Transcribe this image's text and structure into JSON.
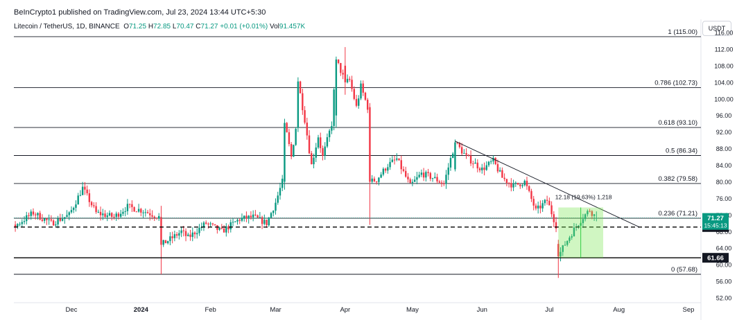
{
  "header": {
    "publisher": "BeInCrypto1 published on TradingView.com, Jul 23, 2024 13:44 UTC+5:30",
    "symbol": "Litecoin / TetherUS, 1D, BINANCE",
    "o_label": "O",
    "o": "71.25",
    "h_label": "H",
    "h": "72.85",
    "l_label": "L",
    "l": "70.47",
    "c_label": "C",
    "c": "71.27",
    "change": "+0.01 (+0.01%)",
    "vol_label": "Vol",
    "vol": "91.457K",
    "currency_button": "USDT"
  },
  "colors": {
    "up": "#089981",
    "down": "#f23645",
    "line": "#131722",
    "grid_text": "#131722",
    "rect_fill": "rgba(120,230,80,0.35)",
    "rect_line": "#2ecc40"
  },
  "chart_data": {
    "type": "candlestick",
    "title": "Litecoin / TetherUS, 1D, BINANCE",
    "ylim": [
      51,
      118
    ],
    "x_ticks": [
      "Dec",
      "2024",
      "Feb",
      "Mar",
      "Apr",
      "May",
      "Jun",
      "Jul",
      "Aug",
      "Sep"
    ],
    "y_ticks": [
      "52.00",
      "56.00",
      "60.00",
      "64.00",
      "68.00",
      "72.00",
      "76.00",
      "80.00",
      "84.00",
      "88.00",
      "92.00",
      "96.00",
      "100.00",
      "104.00",
      "108.00",
      "112.00",
      "116.00"
    ],
    "fib_levels": [
      {
        "label": "1 (115.00)",
        "value": 115.0
      },
      {
        "label": "0.786 (102.73)",
        "value": 102.73
      },
      {
        "label": "0.618 (93.10)",
        "value": 93.1
      },
      {
        "label": "0.5 (86.34)",
        "value": 86.34
      },
      {
        "label": "0.382 (79.58)",
        "value": 79.58
      },
      {
        "label": "0.236 (71.21)",
        "value": 71.21
      },
      {
        "label": "0 (57.68)",
        "value": 57.68
      }
    ],
    "horizontal_lines": [
      {
        "value": 69.08,
        "style": "dashed",
        "label": "69.08"
      },
      {
        "value": 61.66,
        "style": "solid",
        "label": "61.66"
      }
    ],
    "last_price": {
      "value": 71.27,
      "label": "71.27",
      "countdown": "15:45:13"
    },
    "trendline": {
      "from": {
        "date": "2024-05-20",
        "value": 89.8
      },
      "to": {
        "date": "2024-08-10",
        "value": 69.1
      }
    },
    "measure_box": {
      "label": "12.18 (19.63%) 1,218",
      "from_date": "2024-07-05",
      "to_date": "2024-07-25",
      "low": 61.66,
      "high": 73.8
    },
    "series": [
      {
        "date": "2024-01-10",
        "o": 71.5,
        "h": 74.2,
        "l": 57.68,
        "c": 64.8
      },
      {
        "date": "2024-03-05",
        "o": 80.0,
        "h": 95.2,
        "l": 78.1,
        "c": 94.2
      },
      {
        "date": "2024-03-11",
        "o": 93.0,
        "h": 105.2,
        "l": 92.0,
        "c": 104.2
      },
      {
        "date": "2024-03-28",
        "o": 96.0,
        "h": 110.2,
        "l": 93.0,
        "c": 109.5
      },
      {
        "date": "2024-04-01",
        "o": 108.0,
        "h": 112.5,
        "l": 101.0,
        "c": 104.0
      },
      {
        "date": "2024-04-12",
        "o": 98.0,
        "h": 99.0,
        "l": 69.6,
        "c": 80.0
      },
      {
        "date": "2024-05-20",
        "o": 83.0,
        "h": 90.2,
        "l": 82.5,
        "c": 89.5
      },
      {
        "date": "2024-07-05",
        "o": 65.0,
        "h": 66.0,
        "l": 56.8,
        "c": 62.0
      },
      {
        "date": "2024-07-22",
        "o": 71.25,
        "h": 72.85,
        "l": 70.47,
        "c": 71.27
      }
    ]
  }
}
